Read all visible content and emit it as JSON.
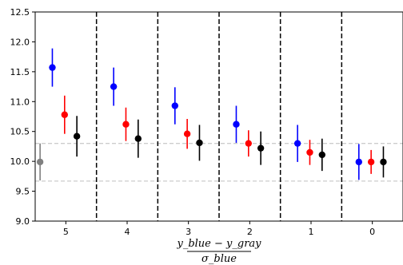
{
  "chart_data": {
    "type": "scatter",
    "subtype": "errorbar",
    "title": "",
    "xlabel": {
      "numerator": "y_blue − y_gray",
      "denominator": "σ_blue"
    },
    "ylabel": "",
    "ylim": [
      9.0,
      12.5
    ],
    "yticks": [
      "9.0",
      "9.5",
      "10.0",
      "10.5",
      "11.0",
      "11.5",
      "12.0",
      "12.5"
    ],
    "categories": [
      "5",
      "4",
      "3",
      "2",
      "1",
      "0"
    ],
    "grid": false,
    "legend": "none",
    "series": [
      {
        "color": "#0000ff",
        "values": [
          11.57,
          11.25,
          10.93,
          10.62,
          10.3,
          9.99
        ],
        "errors": [
          0.32,
          0.32,
          0.31,
          0.31,
          0.31,
          0.3
        ]
      },
      {
        "color": "#ff0000",
        "values": [
          10.78,
          10.62,
          10.46,
          10.3,
          10.15,
          9.99
        ],
        "errors": [
          0.32,
          0.28,
          0.25,
          0.22,
          0.21,
          0.2
        ]
      },
      {
        "color": "#000000",
        "values": [
          10.42,
          10.38,
          10.31,
          10.22,
          10.11,
          9.99
        ],
        "errors": [
          0.34,
          0.32,
          0.3,
          0.28,
          0.27,
          0.26
        ]
      },
      {
        "color": "#808080",
        "values": [
          9.99,
          null,
          null,
          null,
          null,
          null
        ],
        "errors": [
          0.31,
          null,
          null,
          null,
          null,
          null
        ]
      }
    ],
    "reference_lines": [
      {
        "orientation": "horizontal",
        "y": 10.3,
        "color": "#cccccc",
        "style": "dashed"
      },
      {
        "orientation": "horizontal",
        "y": 9.67,
        "color": "#cccccc",
        "style": "dashed"
      }
    ],
    "separators": {
      "color": "#000000",
      "style": "dashed",
      "between_categories": [
        0.5,
        1.5,
        2.5,
        3.5,
        4.5
      ]
    }
  }
}
